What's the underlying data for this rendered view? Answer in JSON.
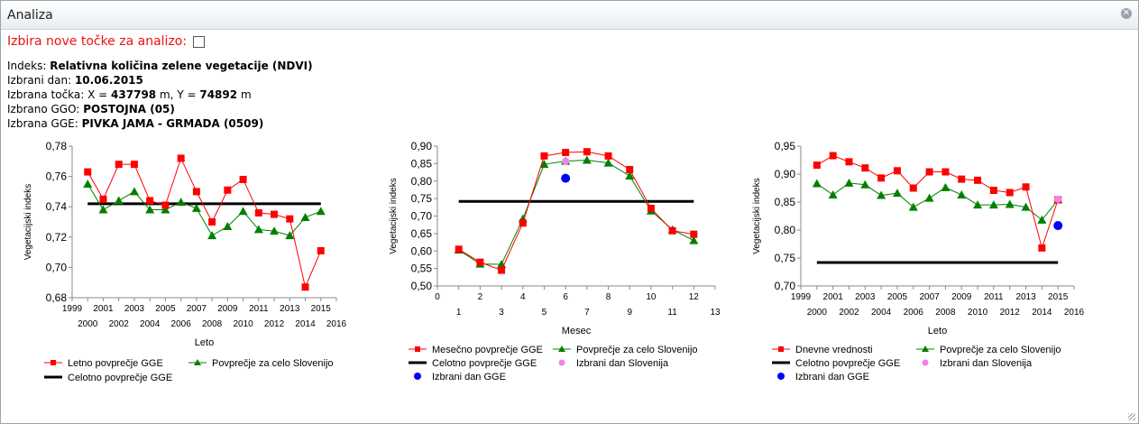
{
  "window": {
    "title": "Analiza"
  },
  "selection": {
    "label": "Izbira nove točke za analizo:"
  },
  "info": {
    "index_label": "Indeks:",
    "index_value": "Relativna količina zelene vegetacije (NDVI)",
    "day_label": "Izbrani dan:",
    "day_value": "10.06.2015",
    "point_label": "Izbrana točka:",
    "point_x_label": "X =",
    "point_x": "437798",
    "point_unit1": "m,",
    "point_y_label": "Y =",
    "point_y": "74892",
    "point_unit2": "m",
    "ggo_label": "Izbrano GGO:",
    "ggo_value": "POSTOJNA (05)",
    "gge_label": "Izbrana GGE:",
    "gge_value": "PIVKA JAMA - GRMADA (0509)"
  },
  "colors": {
    "red": "#ff0000",
    "green": "#008000",
    "black": "#000000",
    "pink": "#ee82ee",
    "blue": "#0000ff"
  },
  "chart_data": [
    {
      "type": "line",
      "xlabel": "Leto",
      "ylabel": "Vegetacijski indeks",
      "xlim": [
        1999,
        2016
      ],
      "ylim": [
        0.68,
        0.78
      ],
      "xticks_top": [
        "1999",
        "2001",
        "2003",
        "2005",
        "2007",
        "2009",
        "2011",
        "2013",
        "2015"
      ],
      "xticks_bottom": [
        "2000",
        "2002",
        "2004",
        "2006",
        "2008",
        "2010",
        "2012",
        "2014",
        "2016"
      ],
      "yticks": [
        "0,68",
        "0,70",
        "0,72",
        "0,74",
        "0,76",
        "0,78"
      ],
      "x": [
        2000,
        2001,
        2002,
        2003,
        2004,
        2005,
        2006,
        2007,
        2008,
        2009,
        2010,
        2011,
        2012,
        2013,
        2014,
        2015
      ],
      "series": [
        {
          "name": "Letno povprečje GGE",
          "marker": "square",
          "color": "#ff0000",
          "values": [
            0.763,
            0.745,
            0.768,
            0.768,
            0.744,
            0.741,
            0.772,
            0.75,
            0.73,
            0.751,
            0.758,
            0.736,
            0.735,
            0.732,
            0.687,
            0.711
          ]
        },
        {
          "name": "Povprečje za celo Slovenijo",
          "marker": "triangle",
          "color": "#008000",
          "values": [
            0.755,
            0.738,
            0.744,
            0.75,
            0.738,
            0.738,
            0.743,
            0.739,
            0.721,
            0.727,
            0.737,
            0.725,
            0.724,
            0.721,
            0.733,
            0.737
          ]
        },
        {
          "name": "Celotno povprečje GGE",
          "marker": "none",
          "color": "#000000",
          "values": [
            0.742,
            0.742,
            0.742,
            0.742,
            0.742,
            0.742,
            0.742,
            0.742,
            0.742,
            0.742,
            0.742,
            0.742,
            0.742,
            0.742,
            0.742,
            0.742
          ]
        }
      ]
    },
    {
      "type": "line",
      "xlabel": "Mesec",
      "ylabel": "Vegetacijski indeks",
      "xlim": [
        0,
        13
      ],
      "ylim": [
        0.5,
        0.9
      ],
      "xticks_top": [
        "0",
        "2",
        "4",
        "6",
        "8",
        "10",
        "12"
      ],
      "xticks_bottom": [
        "1",
        "3",
        "5",
        "7",
        "9",
        "11",
        "13"
      ],
      "yticks": [
        "0,50",
        "0,55",
        "0,60",
        "0,65",
        "0,70",
        "0,75",
        "0,80",
        "0,85",
        "0,90"
      ],
      "x": [
        1,
        2,
        3,
        4,
        5,
        6,
        7,
        8,
        9,
        10,
        11,
        12
      ],
      "series": [
        {
          "name": "Mesečno povprečje GGE",
          "marker": "square",
          "color": "#ff0000",
          "values": [
            0.605,
            0.568,
            0.545,
            0.68,
            0.872,
            0.882,
            0.884,
            0.872,
            0.833,
            0.722,
            0.658,
            0.648
          ]
        },
        {
          "name": "Povprečje za celo Slovenijo",
          "marker": "triangle",
          "color": "#008000",
          "values": [
            0.603,
            0.563,
            0.562,
            0.692,
            0.848,
            0.857,
            0.86,
            0.852,
            0.815,
            0.715,
            0.661,
            0.63
          ]
        },
        {
          "name": "Celotno povprečje GGE",
          "marker": "none",
          "color": "#000000",
          "values": [
            0.742,
            0.742,
            0.742,
            0.742,
            0.742,
            0.742,
            0.742,
            0.742,
            0.742,
            0.742,
            0.742,
            0.742
          ]
        }
      ],
      "points": [
        {
          "name": "Izbrani dan Slovenija",
          "x": 6,
          "y": 0.857,
          "color": "#ee82ee"
        },
        {
          "name": "Izbrani dan GGE",
          "x": 6,
          "y": 0.808,
          "color": "#0000ff"
        }
      ]
    },
    {
      "type": "line",
      "xlabel": "Leto",
      "ylabel": "Vegetacijski indeks",
      "xlim": [
        1999,
        2016
      ],
      "ylim": [
        0.7,
        0.95
      ],
      "xticks_top": [
        "1999",
        "2001",
        "2003",
        "2005",
        "2007",
        "2009",
        "2011",
        "2013",
        "2015"
      ],
      "xticks_bottom": [
        "2000",
        "2002",
        "2004",
        "2006",
        "2008",
        "2010",
        "2012",
        "2014",
        "2016"
      ],
      "yticks": [
        "0,70",
        "0,75",
        "0,80",
        "0,85",
        "0,90",
        "0,95"
      ],
      "x": [
        2000,
        2001,
        2002,
        2003,
        2004,
        2005,
        2006,
        2007,
        2008,
        2009,
        2010,
        2011,
        2012,
        2013,
        2014,
        2015
      ],
      "series": [
        {
          "name": "Dnevne vrednosti",
          "marker": "square",
          "color": "#ff0000",
          "values": [
            0.916,
            0.933,
            0.922,
            0.911,
            0.893,
            0.906,
            0.875,
            0.904,
            0.904,
            0.891,
            0.889,
            0.871,
            0.867,
            0.877,
            0.768,
            0.854
          ]
        },
        {
          "name": "Povprečje za celo Slovenijo",
          "marker": "triangle",
          "color": "#008000",
          "values": [
            0.883,
            0.863,
            0.884,
            0.881,
            0.862,
            0.866,
            0.841,
            0.857,
            0.876,
            0.863,
            0.845,
            0.845,
            0.846,
            0.841,
            0.818,
            0.854
          ]
        },
        {
          "name": "Celotno povprečje GGE",
          "marker": "none",
          "color": "#000000",
          "values": [
            0.742,
            0.742,
            0.742,
            0.742,
            0.742,
            0.742,
            0.742,
            0.742,
            0.742,
            0.742,
            0.742,
            0.742,
            0.742,
            0.742,
            0.742,
            0.742
          ]
        }
      ],
      "points": [
        {
          "name": "Izbrani dan Slovenija",
          "x": 2015,
          "y": 0.855,
          "color": "#ee82ee"
        },
        {
          "name": "Izbrani dan GGE",
          "x": 2015,
          "y": 0.808,
          "color": "#0000ff"
        }
      ]
    }
  ]
}
